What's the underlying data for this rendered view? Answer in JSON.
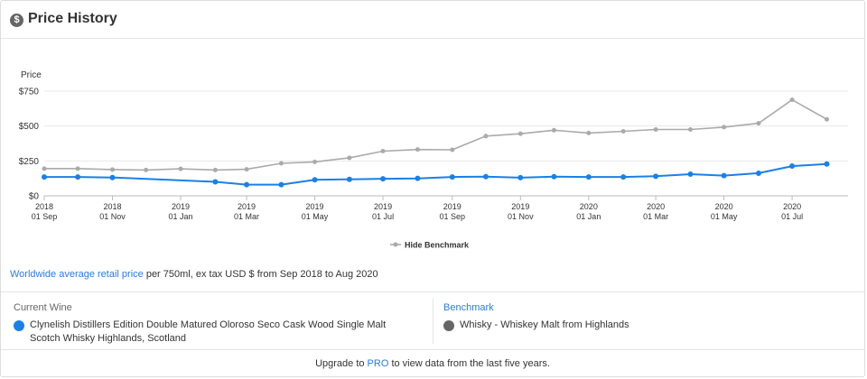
{
  "header": {
    "icon": "dollar-circle-icon",
    "icon_glyph": "$",
    "title": "Price History"
  },
  "legend": {
    "toggle_label": "Hide Benchmark"
  },
  "caption": {
    "link_text": "Worldwide average retail price",
    "rest_text": " per 750ml, ex tax USD $ from Sep 2018 to Aug 2020"
  },
  "current": {
    "title": "Current Wine",
    "name": "Clynelish Distillers Edition Double Matured Oloroso Seco Cask Wood Single Malt Scotch Whisky Highlands, Scotland",
    "color": "#1a80e5"
  },
  "benchmark": {
    "title": "Benchmark",
    "name": "Whisky - Whiskey Malt from Highlands",
    "color": "#666666"
  },
  "footer": {
    "before": "Upgrade to ",
    "link": "PRO",
    "after": " to view data from the last five years."
  },
  "chart_data": {
    "type": "line",
    "ylabel": "Price",
    "ylim": [
      0,
      750
    ],
    "yticks": [
      "$0",
      "$250",
      "$500",
      "$750"
    ],
    "xticks": [
      {
        "x": "2018-09-01",
        "year": "2018",
        "label": "01 Sep"
      },
      {
        "x": "2018-11-01",
        "year": "2018",
        "label": "01 Nov"
      },
      {
        "x": "2019-01-01",
        "year": "2019",
        "label": "01 Jan"
      },
      {
        "x": "2019-03-01",
        "year": "2019",
        "label": "01 Mar"
      },
      {
        "x": "2019-05-01",
        "year": "2019",
        "label": "01 May"
      },
      {
        "x": "2019-07-01",
        "year": "2019",
        "label": "01 Jul"
      },
      {
        "x": "2019-09-01",
        "year": "2019",
        "label": "01 Sep"
      },
      {
        "x": "2019-11-01",
        "year": "2019",
        "label": "01 Nov"
      },
      {
        "x": "2020-01-01",
        "year": "2020",
        "label": "01 Jan"
      },
      {
        "x": "2020-03-01",
        "year": "2020",
        "label": "01 Mar"
      },
      {
        "x": "2020-05-01",
        "year": "2020",
        "label": "01 May"
      },
      {
        "x": "2020-07-01",
        "year": "2020",
        "label": "01 Jul"
      }
    ],
    "xlim": [
      "2018-09-01",
      "2020-08-20"
    ],
    "grid": true,
    "legend_position": "bottom-center",
    "series": [
      {
        "name": "Hide Benchmark",
        "color": "#aaaaaa",
        "points": [
          {
            "x": "2018-09-01",
            "y": 195
          },
          {
            "x": "2018-10-01",
            "y": 195
          },
          {
            "x": "2018-11-01",
            "y": 188
          },
          {
            "x": "2018-12-01",
            "y": 185
          },
          {
            "x": "2019-01-01",
            "y": 193
          },
          {
            "x": "2019-02-01",
            "y": 185
          },
          {
            "x": "2019-03-01",
            "y": 190
          },
          {
            "x": "2019-04-01",
            "y": 233
          },
          {
            "x": "2019-05-01",
            "y": 243
          },
          {
            "x": "2019-06-01",
            "y": 272
          },
          {
            "x": "2019-07-01",
            "y": 320
          },
          {
            "x": "2019-08-01",
            "y": 332
          },
          {
            "x": "2019-09-01",
            "y": 330
          },
          {
            "x": "2019-10-01",
            "y": 428
          },
          {
            "x": "2019-11-01",
            "y": 445
          },
          {
            "x": "2019-12-01",
            "y": 470
          },
          {
            "x": "2020-01-01",
            "y": 450
          },
          {
            "x": "2020-02-01",
            "y": 462
          },
          {
            "x": "2020-03-01",
            "y": 475
          },
          {
            "x": "2020-04-01",
            "y": 475
          },
          {
            "x": "2020-05-01",
            "y": 492
          },
          {
            "x": "2020-06-01",
            "y": 520
          },
          {
            "x": "2020-07-01",
            "y": 688
          },
          {
            "x": "2020-08-01",
            "y": 548
          }
        ]
      },
      {
        "color": "#1a80e5",
        "points": [
          {
            "x": "2018-09-01",
            "y": 135
          },
          {
            "x": "2018-10-01",
            "y": 135
          },
          {
            "x": "2018-11-01",
            "y": 131
          },
          {
            "x": "2019-02-01",
            "y": 100
          },
          {
            "x": "2019-03-01",
            "y": 80
          },
          {
            "x": "2019-04-01",
            "y": 80
          },
          {
            "x": "2019-05-01",
            "y": 115
          },
          {
            "x": "2019-06-01",
            "y": 118
          },
          {
            "x": "2019-07-01",
            "y": 122
          },
          {
            "x": "2019-08-01",
            "y": 125
          },
          {
            "x": "2019-09-01",
            "y": 135
          },
          {
            "x": "2019-10-01",
            "y": 137
          },
          {
            "x": "2019-11-01",
            "y": 130
          },
          {
            "x": "2019-12-01",
            "y": 137
          },
          {
            "x": "2020-01-01",
            "y": 135
          },
          {
            "x": "2020-02-01",
            "y": 135
          },
          {
            "x": "2020-03-01",
            "y": 140
          },
          {
            "x": "2020-04-01",
            "y": 155
          },
          {
            "x": "2020-05-01",
            "y": 145
          },
          {
            "x": "2020-06-01",
            "y": 162
          },
          {
            "x": "2020-07-01",
            "y": 213
          },
          {
            "x": "2020-08-01",
            "y": 228
          }
        ]
      }
    ]
  }
}
